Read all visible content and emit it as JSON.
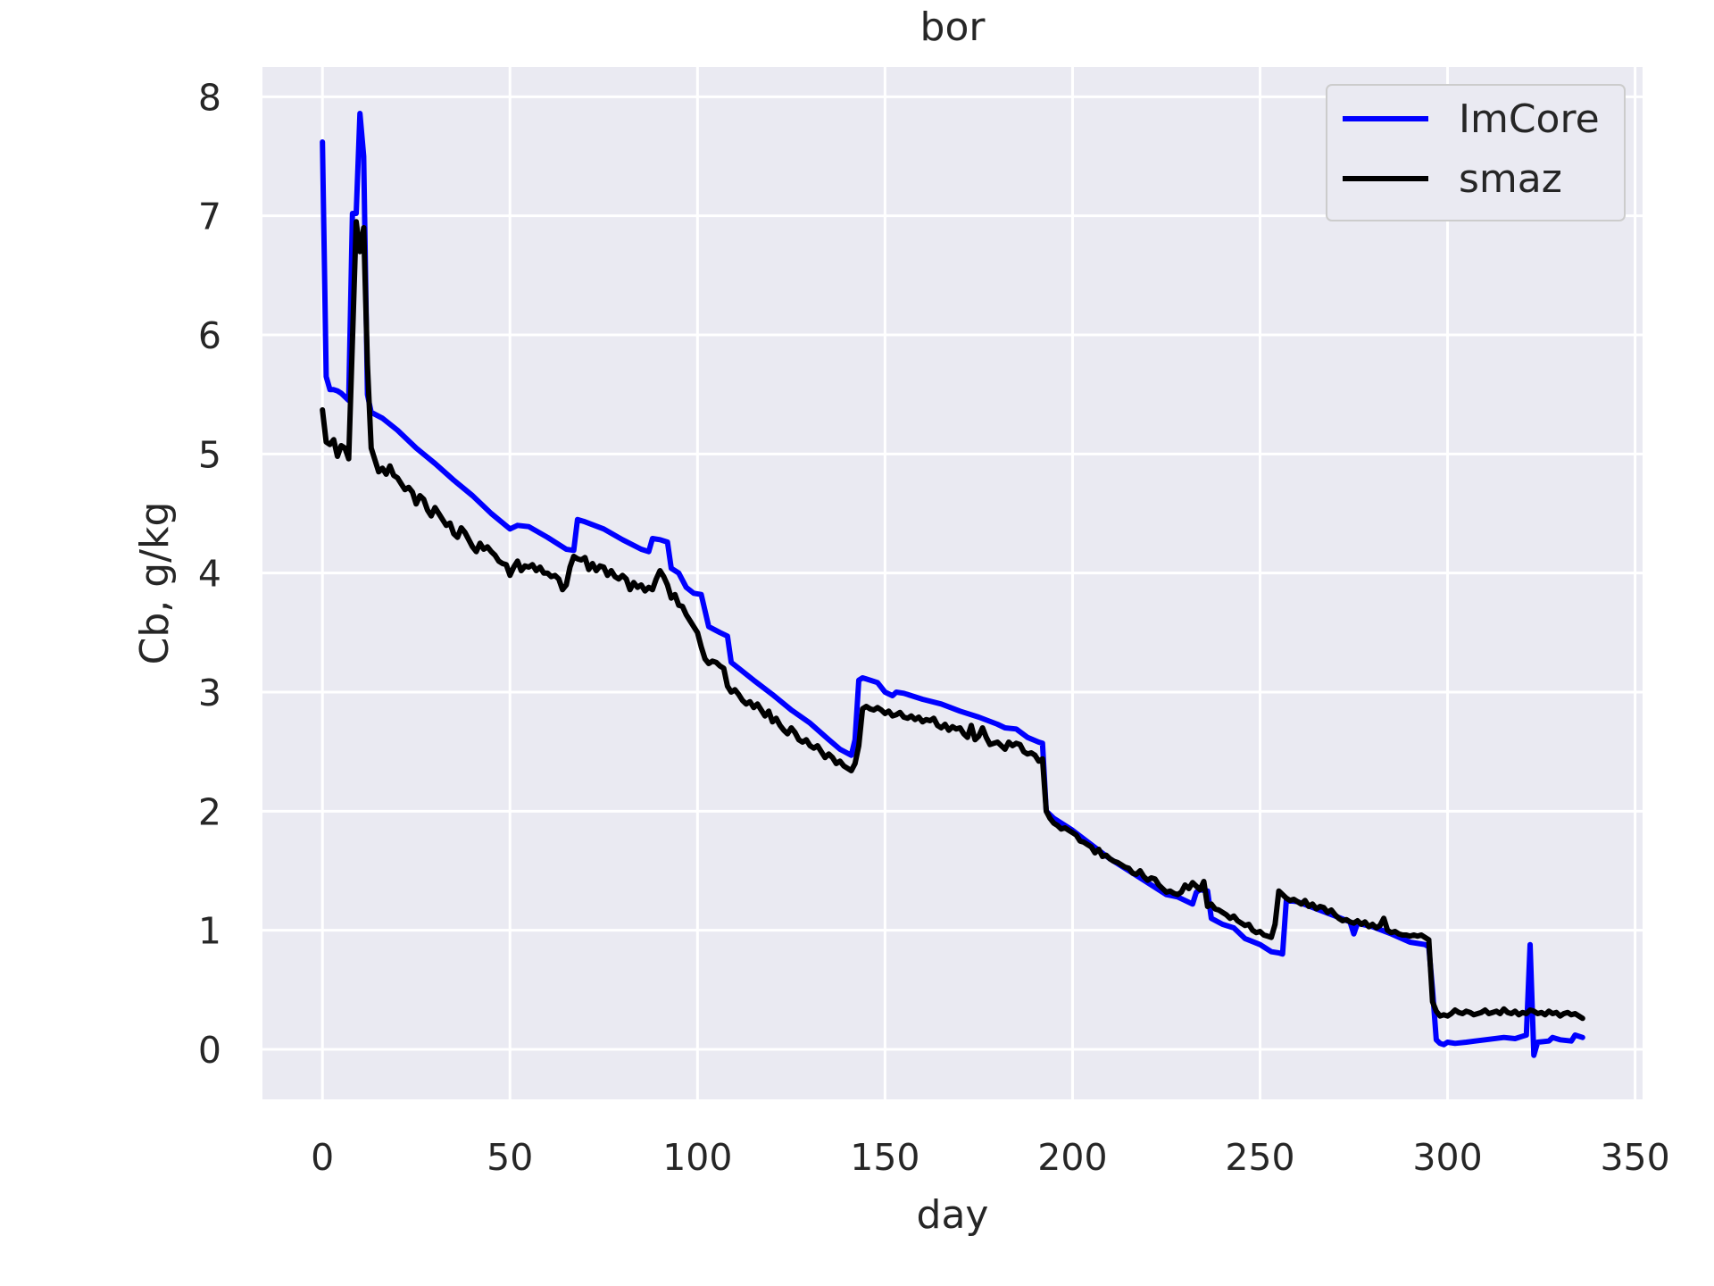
{
  "chart_data": {
    "type": "line",
    "title": "bor",
    "xlabel": "day",
    "ylabel": "Cb, g/kg",
    "xlim": [
      -16,
      352
    ],
    "ylim": [
      -0.42,
      8.25
    ],
    "xticks": [
      0,
      50,
      100,
      150,
      200,
      250,
      300,
      350
    ],
    "yticks": [
      0,
      1,
      2,
      3,
      4,
      5,
      6,
      7,
      8
    ],
    "grid": true,
    "legend_position": "top-right",
    "colors": {
      "plot_bg": "#eaeaf2",
      "grid": "#ffffff",
      "text": "#262626"
    },
    "series": [
      {
        "name": "ImCore",
        "color": "#0000ff",
        "x": [
          0,
          1,
          2,
          3,
          4,
          5,
          6,
          7,
          8,
          9,
          10,
          11,
          12,
          13,
          16,
          20,
          25,
          30,
          35,
          40,
          45,
          50,
          52,
          55,
          60,
          65,
          67,
          68,
          70,
          75,
          80,
          85,
          87,
          88,
          90,
          92,
          93,
          95,
          97,
          99,
          101,
          103,
          106,
          108,
          109,
          111,
          115,
          120,
          125,
          130,
          135,
          138,
          141,
          142,
          143,
          144,
          145,
          148,
          150,
          152,
          153,
          155,
          160,
          165,
          170,
          175,
          180,
          182,
          185,
          188,
          191,
          192,
          193,
          195,
          200,
          205,
          210,
          215,
          220,
          225,
          228,
          232,
          233,
          234,
          236,
          237,
          240,
          243,
          246,
          250,
          253,
          255,
          256,
          257,
          260,
          265,
          270,
          274,
          275,
          276,
          280,
          285,
          290,
          294,
          295,
          296,
          297,
          298,
          299,
          300,
          302,
          305,
          310,
          315,
          318,
          320,
          321,
          322,
          323,
          324,
          327,
          328,
          330,
          333,
          334,
          336
        ],
        "values": [
          7.62,
          5.65,
          5.54,
          5.54,
          5.53,
          5.51,
          5.48,
          5.45,
          7.02,
          7.02,
          7.86,
          7.5,
          5.5,
          5.35,
          5.3,
          5.2,
          5.05,
          4.92,
          4.78,
          4.65,
          4.5,
          4.37,
          4.4,
          4.39,
          4.3,
          4.2,
          4.19,
          4.45,
          4.43,
          4.37,
          4.28,
          4.2,
          4.18,
          4.29,
          4.28,
          4.26,
          4.04,
          4.0,
          3.88,
          3.83,
          3.82,
          3.55,
          3.5,
          3.47,
          3.25,
          3.2,
          3.1,
          2.98,
          2.85,
          2.74,
          2.6,
          2.52,
          2.47,
          2.6,
          3.1,
          3.12,
          3.11,
          3.08,
          3.0,
          2.97,
          3.0,
          2.99,
          2.94,
          2.9,
          2.84,
          2.79,
          2.73,
          2.7,
          2.69,
          2.62,
          2.58,
          2.57,
          2.0,
          1.94,
          1.84,
          1.72,
          1.6,
          1.5,
          1.4,
          1.3,
          1.28,
          1.22,
          1.32,
          1.34,
          1.33,
          1.1,
          1.05,
          1.02,
          0.93,
          0.88,
          0.82,
          0.81,
          0.8,
          1.25,
          1.24,
          1.18,
          1.12,
          1.07,
          0.97,
          1.06,
          1.03,
          0.97,
          0.9,
          0.88,
          0.86,
          0.5,
          0.08,
          0.05,
          0.04,
          0.06,
          0.05,
          0.06,
          0.08,
          0.1,
          0.09,
          0.11,
          0.12,
          0.88,
          -0.05,
          0.06,
          0.07,
          0.1,
          0.08,
          0.07,
          0.12,
          0.1
        ]
      },
      {
        "name": "smaz",
        "color": "#000000",
        "x": [
          0,
          1,
          2,
          3,
          4,
          5,
          6,
          7,
          8,
          9,
          10,
          11,
          12,
          13,
          14,
          15,
          16,
          17,
          18,
          19,
          20,
          21,
          22,
          23,
          24,
          25,
          26,
          27,
          28,
          29,
          30,
          31,
          32,
          33,
          34,
          35,
          36,
          37,
          38,
          39,
          40,
          41,
          42,
          43,
          44,
          45,
          46,
          47,
          48,
          49,
          50,
          51,
          52,
          53,
          54,
          55,
          56,
          57,
          58,
          59,
          60,
          61,
          62,
          63,
          64,
          65,
          66,
          67,
          68,
          69,
          70,
          71,
          72,
          73,
          74,
          75,
          76,
          77,
          78,
          79,
          80,
          81,
          82,
          83,
          84,
          85,
          86,
          87,
          88,
          89,
          90,
          91,
          92,
          93,
          94,
          95,
          96,
          97,
          98,
          99,
          100,
          101,
          102,
          103,
          104,
          105,
          106,
          107,
          108,
          109,
          110,
          111,
          112,
          113,
          114,
          115,
          116,
          117,
          118,
          119,
          120,
          121,
          122,
          123,
          124,
          125,
          126,
          127,
          128,
          129,
          130,
          131,
          132,
          133,
          134,
          135,
          136,
          137,
          138,
          139,
          140,
          141,
          142,
          143,
          144,
          145,
          146,
          147,
          148,
          149,
          150,
          151,
          152,
          153,
          154,
          155,
          156,
          157,
          158,
          159,
          160,
          161,
          162,
          163,
          164,
          165,
          166,
          167,
          168,
          169,
          170,
          171,
          172,
          173,
          174,
          175,
          176,
          177,
          178,
          179,
          180,
          181,
          182,
          183,
          184,
          185,
          186,
          187,
          188,
          189,
          190,
          191,
          192,
          193,
          194,
          195,
          196,
          197,
          198,
          199,
          200,
          201,
          202,
          203,
          204,
          205,
          206,
          207,
          208,
          209,
          210,
          211,
          212,
          213,
          214,
          215,
          216,
          217,
          218,
          219,
          220,
          221,
          222,
          223,
          224,
          225,
          226,
          227,
          228,
          229,
          230,
          231,
          232,
          233,
          234,
          235,
          236,
          237,
          238,
          239,
          240,
          241,
          242,
          243,
          244,
          245,
          246,
          247,
          248,
          249,
          250,
          251,
          252,
          253,
          254,
          255,
          256,
          257,
          258,
          259,
          260,
          261,
          262,
          263,
          264,
          265,
          266,
          267,
          268,
          269,
          270,
          271,
          272,
          273,
          274,
          275,
          276,
          277,
          278,
          279,
          280,
          281,
          282,
          283,
          284,
          285,
          286,
          287,
          288,
          289,
          290,
          291,
          292,
          293,
          294,
          295,
          296,
          297,
          298,
          299,
          300,
          301,
          302,
          303,
          304,
          305,
          306,
          307,
          308,
          309,
          310,
          311,
          312,
          313,
          314,
          315,
          316,
          317,
          318,
          319,
          320,
          321,
          322,
          323,
          324,
          325,
          326,
          327,
          328,
          329,
          330,
          331,
          332,
          333,
          334,
          335,
          336
        ],
        "values": [
          5.37,
          5.1,
          5.08,
          5.12,
          4.98,
          5.07,
          5.05,
          4.96,
          5.95,
          6.95,
          6.7,
          6.9,
          5.75,
          5.05,
          4.95,
          4.85,
          4.88,
          4.83,
          4.9,
          4.82,
          4.8,
          4.75,
          4.7,
          4.72,
          4.68,
          4.58,
          4.65,
          4.62,
          4.53,
          4.48,
          4.55,
          4.5,
          4.45,
          4.4,
          4.42,
          4.33,
          4.3,
          4.38,
          4.34,
          4.28,
          4.22,
          4.18,
          4.25,
          4.2,
          4.22,
          4.18,
          4.15,
          4.1,
          4.08,
          4.07,
          3.98,
          4.05,
          4.1,
          4.02,
          4.06,
          4.05,
          4.07,
          4.02,
          4.05,
          4.0,
          4.0,
          3.97,
          3.98,
          3.95,
          3.86,
          3.9,
          4.05,
          4.14,
          4.12,
          4.11,
          4.13,
          4.03,
          4.08,
          4.02,
          4.06,
          4.05,
          3.98,
          4.02,
          3.97,
          3.95,
          3.98,
          3.95,
          3.86,
          3.92,
          3.88,
          3.9,
          3.85,
          3.88,
          3.86,
          3.95,
          4.02,
          3.97,
          3.9,
          3.79,
          3.82,
          3.73,
          3.72,
          3.65,
          3.6,
          3.55,
          3.5,
          3.38,
          3.28,
          3.24,
          3.26,
          3.25,
          3.22,
          3.2,
          3.05,
          3.0,
          3.02,
          2.98,
          2.93,
          2.9,
          2.92,
          2.87,
          2.9,
          2.85,
          2.8,
          2.84,
          2.75,
          2.78,
          2.72,
          2.68,
          2.65,
          2.7,
          2.66,
          2.6,
          2.58,
          2.6,
          2.55,
          2.53,
          2.55,
          2.5,
          2.45,
          2.48,
          2.45,
          2.4,
          2.42,
          2.38,
          2.36,
          2.34,
          2.4,
          2.55,
          2.86,
          2.88,
          2.86,
          2.85,
          2.87,
          2.85,
          2.82,
          2.84,
          2.8,
          2.81,
          2.83,
          2.79,
          2.78,
          2.8,
          2.77,
          2.79,
          2.75,
          2.77,
          2.76,
          2.78,
          2.72,
          2.7,
          2.73,
          2.68,
          2.71,
          2.69,
          2.7,
          2.65,
          2.62,
          2.72,
          2.6,
          2.63,
          2.7,
          2.62,
          2.56,
          2.57,
          2.58,
          2.55,
          2.52,
          2.58,
          2.55,
          2.57,
          2.56,
          2.5,
          2.48,
          2.49,
          2.47,
          2.42,
          2.44,
          2.0,
          1.94,
          1.9,
          1.88,
          1.85,
          1.86,
          1.84,
          1.82,
          1.8,
          1.75,
          1.74,
          1.72,
          1.7,
          1.65,
          1.68,
          1.62,
          1.63,
          1.6,
          1.58,
          1.57,
          1.55,
          1.53,
          1.52,
          1.48,
          1.47,
          1.5,
          1.45,
          1.42,
          1.44,
          1.43,
          1.38,
          1.35,
          1.32,
          1.33,
          1.31,
          1.3,
          1.32,
          1.38,
          1.35,
          1.4,
          1.37,
          1.34,
          1.41,
          1.2,
          1.22,
          1.18,
          1.17,
          1.15,
          1.13,
          1.1,
          1.12,
          1.08,
          1.06,
          1.04,
          1.05,
          1.0,
          0.98,
          0.99,
          0.96,
          0.95,
          0.94,
          1.05,
          1.33,
          1.3,
          1.27,
          1.25,
          1.26,
          1.24,
          1.22,
          1.25,
          1.2,
          1.22,
          1.18,
          1.2,
          1.19,
          1.15,
          1.17,
          1.13,
          1.1,
          1.08,
          1.09,
          1.07,
          1.06,
          1.08,
          1.05,
          1.07,
          1.03,
          1.05,
          1.02,
          1.04,
          1.1,
          1.0,
          0.98,
          0.99,
          0.97,
          0.96,
          0.96,
          0.95,
          0.96,
          0.95,
          0.96,
          0.94,
          0.92,
          0.4,
          0.32,
          0.28,
          0.29,
          0.28,
          0.3,
          0.33,
          0.31,
          0.3,
          0.32,
          0.31,
          0.29,
          0.3,
          0.31,
          0.33,
          0.3,
          0.31,
          0.32,
          0.3,
          0.34,
          0.31,
          0.3,
          0.32,
          0.29,
          0.31,
          0.3,
          0.33,
          0.32,
          0.3,
          0.31,
          0.29,
          0.32,
          0.3,
          0.31,
          0.28,
          0.3,
          0.31,
          0.29,
          0.3,
          0.28,
          0.26
        ]
      }
    ]
  }
}
